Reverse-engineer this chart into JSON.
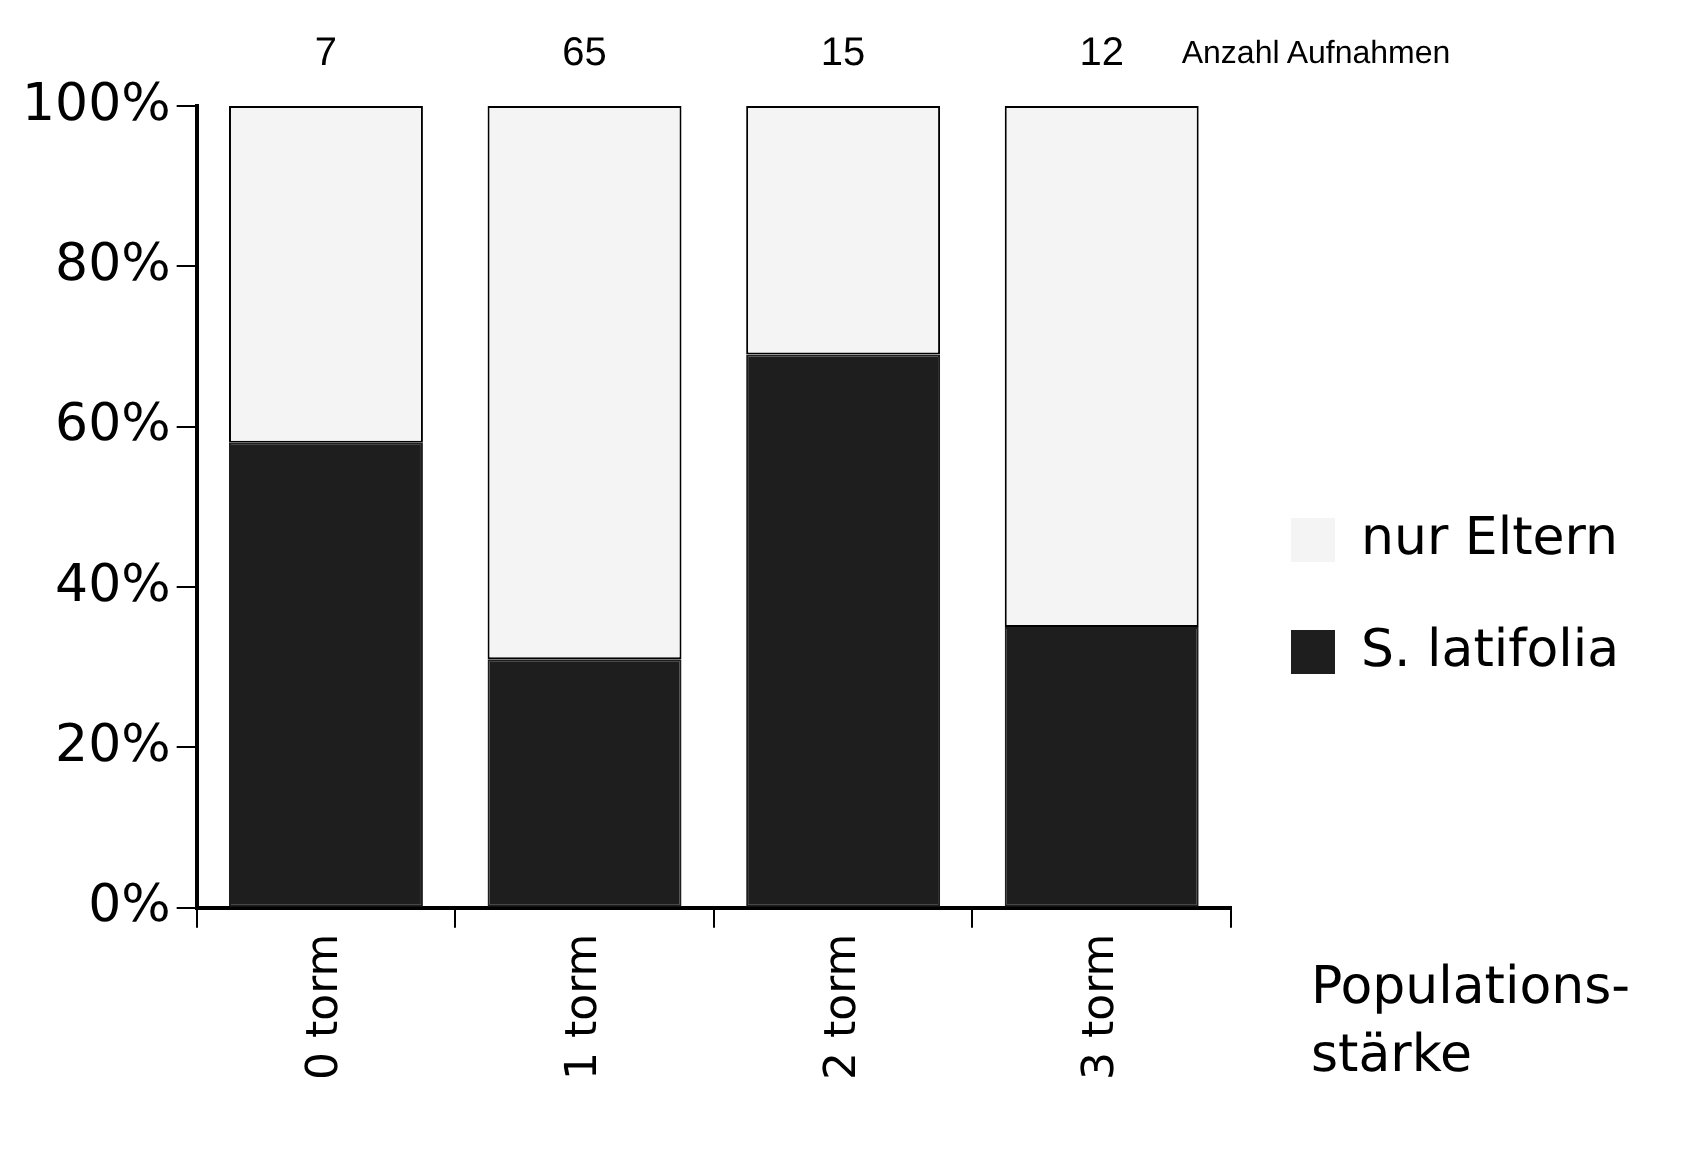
{
  "chart_data": {
    "type": "bar",
    "stacked": true,
    "xlabel": "Populations-stärke",
    "categories": [
      "0 torm",
      "1 torm",
      "2 torm",
      "3 torm"
    ],
    "series": [
      {
        "name": "S. latifolia",
        "color": "#1e1e1e",
        "values": [
          58,
          31,
          69,
          35
        ]
      },
      {
        "name": "nur Eltern",
        "color": "#f4f4f4",
        "values": [
          42,
          69,
          31,
          65
        ]
      }
    ],
    "ylim": [
      0,
      100
    ],
    "yticks": [
      {
        "value": 0,
        "label": "0%"
      },
      {
        "value": 20,
        "label": "20%"
      },
      {
        "value": 40,
        "label": "40%"
      },
      {
        "value": 60,
        "label": "60%"
      },
      {
        "value": 80,
        "label": "80%"
      },
      {
        "value": 100,
        "label": "100%"
      }
    ],
    "grid": false,
    "legend": "right",
    "annotations": [
      {
        "text": "7",
        "x": "0 torm",
        "y": 100
      },
      {
        "text": "65",
        "x": "1 torm",
        "y": 100
      },
      {
        "text": "15",
        "x": "2 torm",
        "y": 100
      },
      {
        "text": "12",
        "x": "3 torm",
        "y": 100
      },
      "Anzahl Aufnahmen"
    ]
  }
}
